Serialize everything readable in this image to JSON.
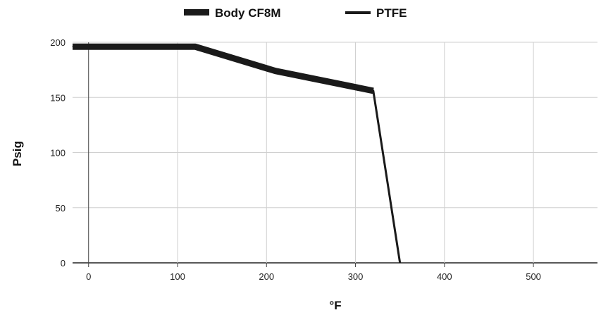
{
  "chart_data": {
    "type": "line",
    "xlabel": "°F",
    "ylabel": "Psig",
    "xlim": [
      -18,
      572
    ],
    "ylim": [
      0,
      200
    ],
    "x_ticks": [
      0,
      100,
      200,
      300,
      400,
      500
    ],
    "y_ticks": [
      0,
      50,
      100,
      150,
      200
    ],
    "grid": true,
    "legend_position": "top-center",
    "series": [
      {
        "name": "Body CF8M",
        "color": "#1a1a1a",
        "style": "thick",
        "points": [
          [
            -18,
            196
          ],
          [
            120,
            196
          ],
          [
            210,
            174
          ],
          [
            320,
            156
          ]
        ]
      },
      {
        "name": "PTFE",
        "color": "#1a1a1a",
        "style": "thin",
        "points": [
          [
            -18,
            196
          ],
          [
            120,
            196
          ],
          [
            210,
            174
          ],
          [
            320,
            156
          ],
          [
            350,
            0
          ]
        ]
      }
    ]
  }
}
